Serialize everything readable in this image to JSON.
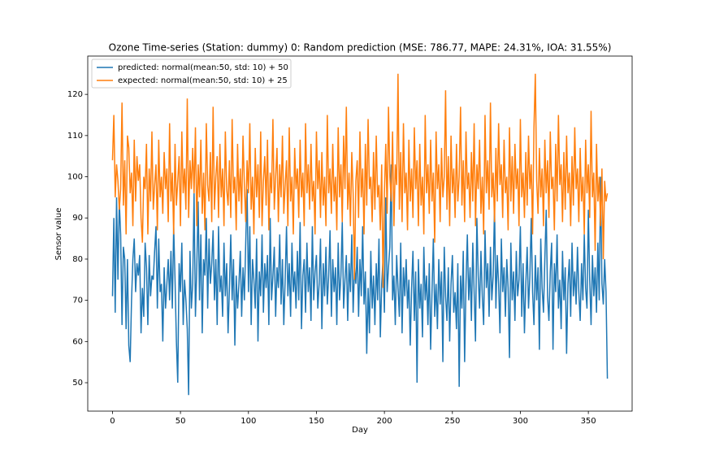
{
  "chart_data": {
    "type": "line",
    "title": "Ozone Time-series (Station: dummy) 0: Random prediction (MSE: 786.77, MAPE: 24.31%, IOA: 31.55%)",
    "xlabel": "Day",
    "ylabel": "Sensor value",
    "xlim": [
      -18.2,
      382.2
    ],
    "xticks": [
      0,
      50,
      100,
      150,
      200,
      250,
      300,
      350
    ],
    "ylim": [
      43.1,
      129.3
    ],
    "yticks": [
      50,
      60,
      70,
      80,
      90,
      100,
      110,
      120
    ],
    "legend": "upper left",
    "x": [
      0,
      1,
      2,
      3,
      4,
      5,
      6,
      7,
      8,
      9,
      10,
      11,
      12,
      13,
      14,
      15,
      16,
      17,
      18,
      19,
      20,
      21,
      22,
      23,
      24,
      25,
      26,
      27,
      28,
      29,
      30,
      31,
      32,
      33,
      34,
      35,
      36,
      37,
      38,
      39,
      40,
      41,
      42,
      43,
      44,
      45,
      46,
      47,
      48,
      49,
      50,
      51,
      52,
      53,
      54,
      55,
      56,
      57,
      58,
      59,
      60,
      61,
      62,
      63,
      64,
      65,
      66,
      67,
      68,
      69,
      70,
      71,
      72,
      73,
      74,
      75,
      76,
      77,
      78,
      79,
      80,
      81,
      82,
      83,
      84,
      85,
      86,
      87,
      88,
      89,
      90,
      91,
      92,
      93,
      94,
      95,
      96,
      97,
      98,
      99,
      100,
      101,
      102,
      103,
      104,
      105,
      106,
      107,
      108,
      109,
      110,
      111,
      112,
      113,
      114,
      115,
      116,
      117,
      118,
      119,
      120,
      121,
      122,
      123,
      124,
      125,
      126,
      127,
      128,
      129,
      130,
      131,
      132,
      133,
      134,
      135,
      136,
      137,
      138,
      139,
      140,
      141,
      142,
      143,
      144,
      145,
      146,
      147,
      148,
      149,
      150,
      151,
      152,
      153,
      154,
      155,
      156,
      157,
      158,
      159,
      160,
      161,
      162,
      163,
      164,
      165,
      166,
      167,
      168,
      169,
      170,
      171,
      172,
      173,
      174,
      175,
      176,
      177,
      178,
      179,
      180,
      181,
      182,
      183,
      184,
      185,
      186,
      187,
      188,
      189,
      190,
      191,
      192,
      193,
      194,
      195,
      196,
      197,
      198,
      199,
      200,
      201,
      202,
      203,
      204,
      205,
      206,
      207,
      208,
      209,
      210,
      211,
      212,
      213,
      214,
      215,
      216,
      217,
      218,
      219,
      220,
      221,
      222,
      223,
      224,
      225,
      226,
      227,
      228,
      229,
      230,
      231,
      232,
      233,
      234,
      235,
      236,
      237,
      238,
      239,
      240,
      241,
      242,
      243,
      244,
      245,
      246,
      247,
      248,
      249,
      250,
      251,
      252,
      253,
      254,
      255,
      256,
      257,
      258,
      259,
      260,
      261,
      262,
      263,
      264,
      265,
      266,
      267,
      268,
      269,
      270,
      271,
      272,
      273,
      274,
      275,
      276,
      277,
      278,
      279,
      280,
      281,
      282,
      283,
      284,
      285,
      286,
      287,
      288,
      289,
      290,
      291,
      292,
      293,
      294,
      295,
      296,
      297,
      298,
      299,
      300,
      301,
      302,
      303,
      304,
      305,
      306,
      307,
      308,
      309,
      310,
      311,
      312,
      313,
      314,
      315,
      316,
      317,
      318,
      319,
      320,
      321,
      322,
      323,
      324,
      325,
      326,
      327,
      328,
      329,
      330,
      331,
      332,
      333,
      334,
      335,
      336,
      337,
      338,
      339,
      340,
      341,
      342,
      343,
      344,
      345,
      346,
      347,
      348,
      349,
      350,
      351,
      352,
      353,
      354,
      355,
      356,
      357,
      358,
      359,
      360,
      361,
      362,
      363,
      364
    ],
    "series": [
      {
        "name": "predicted: normal(mean:50, std: 10) + 50",
        "color": "#1f77b4",
        "values": [
          71,
          90,
          67,
          95,
          75,
          94,
          86,
          64,
          83,
          80,
          63,
          80,
          59,
          55,
          70,
          80,
          85,
          72,
          79,
          76,
          81,
          62,
          73,
          66,
          84,
          78,
          64,
          81,
          71,
          76,
          75,
          82,
          88,
          68,
          85,
          72,
          74,
          60,
          78,
          68,
          74,
          80,
          70,
          82,
          68,
          88,
          75,
          60,
          50,
          79,
          72,
          84,
          64,
          75,
          70,
          63,
          47,
          82,
          68,
          74,
          96,
          66,
          78,
          94,
          70,
          86,
          62,
          80,
          76,
          90,
          68,
          85,
          74,
          79,
          87,
          70,
          80,
          64,
          88,
          72,
          76,
          66,
          84,
          71,
          79,
          62,
          73,
          86,
          70,
          80,
          59,
          76,
          68,
          74,
          82,
          66,
          78,
          70,
          84,
          97,
          72,
          88,
          64,
          80,
          75,
          68,
          85,
          60,
          77,
          71,
          86,
          67,
          79,
          73,
          81,
          64,
          90,
          70,
          76,
          83,
          66,
          78,
          73,
          86,
          69,
          80,
          64,
          75,
          88,
          71,
          79,
          66,
          84,
          72,
          77,
          68,
          82,
          70,
          89,
          63,
          76,
          80,
          67,
          84,
          72,
          78,
          65,
          88,
          70,
          77,
          81,
          68,
          74,
          85,
          63,
          79,
          71,
          83,
          69,
          76,
          87,
          66,
          80,
          72,
          78,
          64,
          84,
          70,
          76,
          89,
          68,
          75,
          81,
          65,
          79,
          72,
          86,
          67,
          78,
          74,
          83,
          66,
          80,
          71,
          88,
          69,
          77,
          57,
          73,
          62,
          82,
          68,
          76,
          64,
          79,
          70,
          85,
          61,
          74,
          80,
          67,
          95,
          72,
          78,
          83,
          103,
          70,
          76,
          64,
          81,
          73,
          66,
          84,
          62,
          78,
          71,
          80,
          68,
          75,
          59,
          73,
          82,
          65,
          77,
          50,
          80,
          68,
          74,
          61,
          83,
          70,
          76,
          64,
          79,
          58,
          72,
          85,
          66,
          74,
          63,
          80,
          69,
          77,
          55,
          83,
          71,
          65,
          78,
          60,
          74,
          81,
          67,
          72,
          63,
          79,
          49,
          76,
          68,
          82,
          55,
          74,
          86,
          70,
          78,
          65,
          84,
          72,
          60,
          90,
          76,
          68,
          82,
          71,
          64,
          87,
          73,
          79,
          66,
          83,
          70,
          76,
          93,
          68,
          81,
          74,
          62,
          85,
          72,
          78,
          66,
          80,
          73,
          56,
          84,
          70,
          77,
          65,
          82,
          71,
          75,
          88,
          66,
          79,
          62,
          74,
          83,
          68,
          76,
          90,
          72,
          64,
          81,
          70,
          78,
          58,
          85,
          73,
          67,
          80,
          92,
          71,
          65,
          77,
          84,
          58,
          79,
          72,
          86,
          68,
          75,
          63,
          82,
          70,
          78,
          57,
          74,
          80,
          66,
          84,
          71,
          77,
          69,
          83,
          72,
          65,
          79,
          70,
          86,
          73,
          68,
          92,
          75,
          64,
          81,
          71,
          78,
          67,
          84,
          70,
          100,
          74,
          69,
          80,
          72,
          51
        ]
      },
      {
        "name": "expected: normal(mean:50, std: 10) + 25",
        "color": "#ff7f0e",
        "values": [
          104,
          115,
          95,
          103,
          99,
          92,
          97,
          118,
          93,
          104,
          86,
          110,
          107,
          96,
          101,
          88,
          109,
          94,
          105,
          99,
          103,
          90,
          84,
          100,
          97,
          108,
          86,
          102,
          94,
          111,
          92,
          98,
          103,
          87,
          109,
          95,
          100,
          91,
          106,
          97,
          102,
          89,
          113,
          94,
          101,
          86,
          108,
          93,
          99,
          105,
          88,
          111,
          96,
          102,
          92,
          119,
          90,
          104,
          97,
          107,
          96,
          112,
          88,
          103,
          95,
          109,
          91,
          101,
          87,
          113,
          98,
          94,
          106,
          89,
          117,
          92,
          100,
          105,
          90,
          108,
          95,
          102,
          88,
          111,
          97,
          93,
          104,
          90,
          114,
          96,
          100,
          87,
          108,
          94,
          102,
          91,
          110,
          98,
          89,
          104,
          96,
          113,
          92,
          100,
          86,
          107,
          95,
          103,
          90,
          111,
          88,
          99,
          105,
          93,
          109,
          87,
          101,
          96,
          114,
          92,
          100,
          107,
          89,
          103,
          95,
          110,
          91,
          98,
          104,
          88,
          112,
          94,
          100,
          86,
          107,
          97,
          102,
          90,
          109,
          95,
          101,
          88,
          113,
          96,
          103,
          92,
          108,
          94,
          99,
          86,
          111,
          97,
          104,
          90,
          106,
          93,
          100,
          88,
          115,
          96,
          102,
          91,
          108,
          94,
          100,
          87,
          112,
          95,
          103,
          89,
          110,
          97,
          117,
          92,
          101,
          88,
          106,
          96,
          75,
          99,
          104,
          90,
          111,
          95,
          102,
          86,
          108,
          93,
          114,
          97,
          100,
          89,
          106,
          92,
          110,
          95,
          98,
          87,
          103,
          73,
          96,
          108,
          91,
          117,
          100,
          94,
          111,
          88,
          103,
          98,
          125,
          92,
          106,
          89,
          113,
          96,
          101,
          87,
          109,
          94,
          102,
          90,
          112,
          97,
          104,
          88,
          108,
          93,
          100,
          86,
          115,
          96,
          103,
          91,
          109,
          94,
          101,
          84,
          111,
          97,
          103,
          89,
          107,
          95,
          100,
          121,
          92,
          105,
          88,
          110,
          96,
          102,
          90,
          108,
          94,
          100,
          117,
          93,
          104,
          89,
          111,
          97,
          101,
          90,
          106,
          94,
          113,
          88,
          103,
          97,
          109,
          91,
          100,
          86,
          115,
          96,
          104,
          92,
          118,
          95,
          101,
          89,
          107,
          94,
          113,
          98,
          103,
          90,
          109,
          96,
          100,
          87,
          112,
          94,
          105,
          91,
          108,
          97,
          102,
          88,
          114,
          95,
          101,
          90,
          106,
          93,
          110,
          97,
          103,
          86,
          112,
          125,
          99,
          91,
          107,
          95,
          102,
          88,
          109,
          96,
          104,
          90,
          111,
          97,
          100,
          87,
          108,
          94,
          115,
          98,
          103,
          89,
          106,
          92,
          110,
          96,
          101,
          88,
          105,
          93,
          112,
          97,
          102,
          89,
          107,
          94,
          100,
          86,
          109,
          96,
          103,
          90,
          116,
          95,
          101,
          82,
          108,
          94,
          100,
          88,
          102,
          80,
          99,
          94,
          96
        ]
      }
    ]
  }
}
